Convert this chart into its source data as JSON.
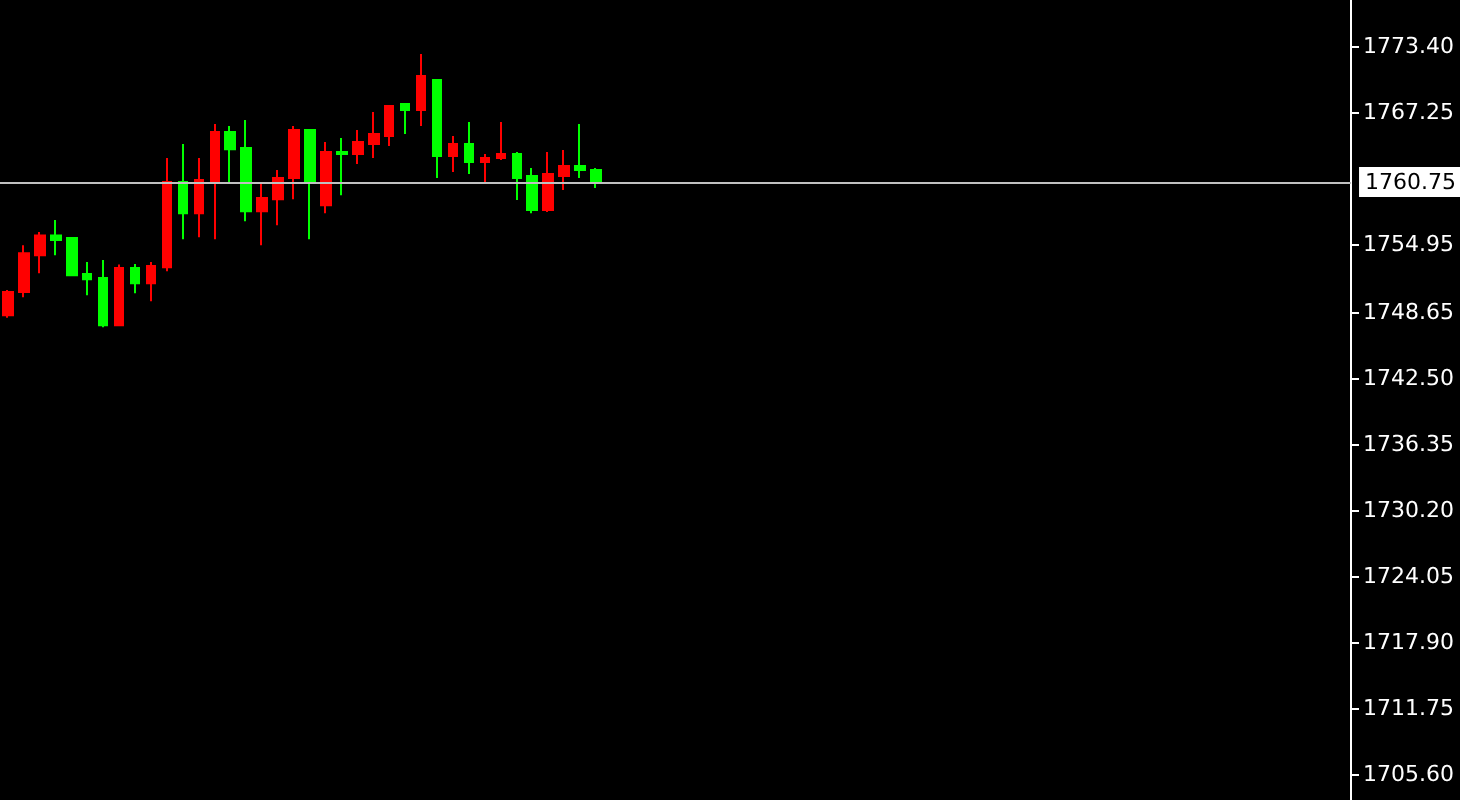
{
  "chart_data": {
    "type": "candlestick",
    "categories": [
      null,
      null,
      null,
      null,
      null,
      null,
      null,
      null,
      null,
      null,
      null,
      null,
      null,
      null,
      null,
      null,
      null,
      null,
      null,
      null,
      null,
      null,
      null,
      null,
      null,
      null,
      null,
      null,
      null,
      null,
      null,
      null,
      null,
      null,
      null,
      null,
      null,
      null,
      null,
      null,
      null,
      null,
      null,
      null,
      null,
      null,
      null,
      null,
      null,
      null,
      null,
      null,
      null,
      null,
      null,
      null,
      null,
      null,
      null,
      null,
      null,
      null,
      null,
      null,
      null,
      null,
      null,
      null,
      null,
      null,
      null,
      null,
      null,
      null,
      null,
      null,
      null,
      null,
      null,
      null,
      null,
      null,
      null,
      null,
      null
    ],
    "ohlc": [
      [
        1748.34,
        1750.7,
        1748.1,
        1750.51
      ],
      [
        1750.51,
        1754.85,
        1750.01,
        1754.11
      ],
      [
        1753.92,
        1756.1,
        1752.25,
        1755.78
      ],
      [
        1755.78,
        1757.22,
        1753.92,
        1755.36
      ],
      [
        1755.54,
        1755.54,
        1752.06,
        1752.06
      ],
      [
        1752.19,
        1753.31,
        1750.2,
        1751.69
      ],
      [
        1751.82,
        1753.49,
        1747.22,
        1747.41
      ],
      [
        1747.41,
        1753.07,
        1747.41,
        1752.75
      ],
      [
        1752.75,
        1753.12,
        1750.38,
        1751.32
      ],
      [
        1751.32,
        1753.31,
        1749.64,
        1752.94
      ],
      [
        1752.81,
        1762.99,
        1752.43,
        1760.75
      ],
      [
        1760.75,
        1764.29,
        1755.41,
        1757.83
      ],
      [
        1757.83,
        1762.99,
        1755.6,
        1760.94
      ],
      [
        1760.75,
        1766.16,
        1755.41,
        1765.41
      ],
      [
        1765.41,
        1765.97,
        1760.75,
        1763.79
      ],
      [
        1763.92,
        1766.53,
        1757.09,
        1758.02
      ],
      [
        1758.02,
        1760.75,
        1754.85,
        1759.27
      ],
      [
        1759.14,
        1761.87,
        1756.72,
        1761.13
      ],
      [
        1761.13,
        1765.97,
        1759.14,
        1765.6
      ],
      [
        1765.6,
        1765.6,
        1755.41,
        1760.75
      ],
      [
        1758.58,
        1764.48,
        1757.83,
        1763.55
      ],
      [
        1763.55,
        1764.85,
        1759.51,
        1763.36
      ],
      [
        1763.36,
        1765.6,
        1762.43,
        1764.48
      ],
      [
        1764.29,
        1767.27,
        1762.99,
        1765.22
      ],
      [
        1765.04,
        1767.83,
        1764.11,
        1767.83
      ],
      [
        1768.02,
        1768.02,
        1765.22,
        1767.46
      ],
      [
        1767.46,
        1772.67,
        1765.97,
        1770.62
      ],
      [
        1770.25,
        1770.25,
        1761.13,
        1763.18
      ],
      [
        1763.18,
        1765.04,
        1761.69,
        1764.29
      ],
      [
        1764.29,
        1766.34,
        1761.5,
        1762.62
      ],
      [
        1762.62,
        1763.36,
        1760.57,
        1762.99
      ],
      [
        1762.99,
        1766.34,
        1762.8,
        1763.36
      ],
      [
        1763.36,
        1763.55,
        1759.08,
        1761.13
      ],
      [
        1761.31,
        1762.06,
        1757.83,
        1758.15
      ],
      [
        1758.15,
        1763.55,
        1757.96,
        1761.5
      ],
      [
        1761.31,
        1763.74,
        1760.01,
        1762.25
      ],
      [
        1762.25,
        1766.16,
        1761.13,
        1761.87
      ],
      [
        1761.87,
        1762.06,
        1760.2,
        1760.75
      ],
      null,
      null,
      null,
      null,
      null,
      null,
      null,
      null,
      null,
      null,
      null,
      null,
      null,
      null,
      null,
      null,
      null,
      null,
      null,
      null,
      null,
      null,
      null,
      null,
      null,
      null,
      null,
      null,
      null,
      null,
      null,
      null,
      null,
      null,
      null,
      null,
      null,
      null,
      null,
      null,
      null,
      null,
      null,
      null,
      null,
      null,
      null
    ],
    "colors": [
      "#ff0000",
      "#ff0000",
      "#ff0000",
      "#00ff00",
      "#00ff00",
      "#00ff00",
      "#00ff00",
      "#ff0000",
      "#00ff00",
      "#ff0000",
      "#ff0000",
      "#00ff00",
      "#ff0000",
      "#ff0000",
      "#00ff00",
      "#00ff00",
      "#ff0000",
      "#ff0000",
      "#ff0000",
      "#00ff00",
      "#ff0000",
      "#00ff00",
      "#ff0000",
      "#ff0000",
      "#ff0000",
      "#00ff00",
      "#ff0000",
      "#00ff00",
      "#ff0000",
      "#00ff00",
      "#ff0000",
      "#ff0000",
      "#00ff00",
      "#00ff00",
      "#ff0000",
      "#ff0000",
      "#00ff00",
      "#00ff00",
      null,
      null,
      null,
      null,
      null,
      null,
      null,
      null,
      null,
      null,
      null,
      null,
      null,
      null,
      null,
      null,
      null,
      null,
      null,
      null,
      null,
      null,
      null,
      null,
      null,
      null,
      null,
      null,
      null,
      null,
      null,
      null,
      null,
      null,
      null,
      null,
      null,
      null,
      null,
      null,
      null,
      null,
      null,
      null,
      null,
      null,
      null
    ],
    "ylim": [
      1703.2,
      1777.7
    ],
    "yticks": [
      {
        "value": 1773.4,
        "label": "1773.40"
      },
      {
        "value": 1767.25,
        "label": "1767.25"
      },
      {
        "value": 1754.95,
        "label": "1754.95"
      },
      {
        "value": 1748.65,
        "label": "1748.65"
      },
      {
        "value": 1742.5,
        "label": "1742.50"
      },
      {
        "value": 1736.35,
        "label": "1736.35"
      },
      {
        "value": 1730.2,
        "label": "1730.20"
      },
      {
        "value": 1724.05,
        "label": "1724.05"
      },
      {
        "value": 1717.9,
        "label": "1717.90"
      },
      {
        "value": 1711.75,
        "label": "1711.75"
      },
      {
        "value": 1705.6,
        "label": "1705.60"
      }
    ],
    "ref_lines": [
      {
        "axis": "y",
        "value": 1760.75,
        "label": "1760.75",
        "color": "#c0c0c0"
      }
    ],
    "grid": false,
    "tick_labels": "y"
  }
}
